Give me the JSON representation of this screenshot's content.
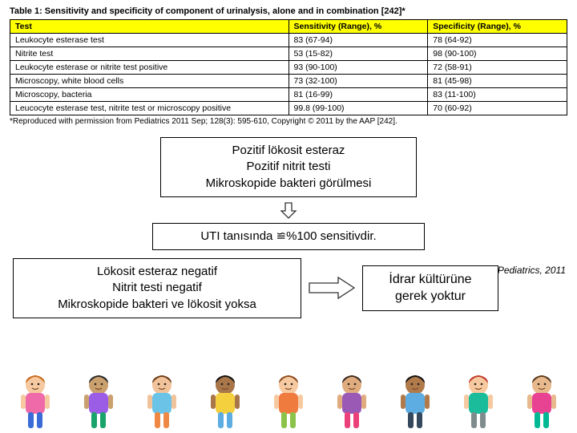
{
  "table": {
    "title": "Table 1: Sensitivity and specificity of component of urinalysis, alone and in combination [242]*",
    "columns": [
      "Test",
      "Sensitivity (Range), %",
      "Specificity (Range), %"
    ],
    "rows": [
      [
        "Leukocyte esterase test",
        "83 (67-94)",
        "78 (64-92)"
      ],
      [
        "Nitrite test",
        "53 (15-82)",
        "98 (90-100)"
      ],
      [
        "Leukocyte esterase or nitrite test positive",
        "93 (90-100)",
        "72 (58-91)"
      ],
      [
        "Microscopy, white blood cells",
        "73 (32-100)",
        "81 (45-98)"
      ],
      [
        "Microscopy, bacteria",
        "81 (16-99)",
        "83 (11-100)"
      ],
      [
        "Leucocyte esterase test, nitrite test or microscopy positive",
        "99.8 (99-100)",
        "70 (60-92)"
      ]
    ],
    "caption": "*Reproduced with permission from Pediatrics 2011 Sep; 128(3): 595-610, Copyright © 2011 by the AAP [242].",
    "header_bg": "#ffff00",
    "col_widths": [
      "50%",
      "25%",
      "25%"
    ],
    "font_size": 10.5,
    "title_font_size": 11,
    "caption_font_size": 10
  },
  "box1": {
    "line1": "Pozitif lökosit esteraz",
    "line2": "Pozitif nitrit testi",
    "line3": "Mikroskopide bakteri görülmesi"
  },
  "box2": {
    "text": "UTI tanısında ≌%100 sensitivdir."
  },
  "box3": {
    "line1": "Lökosit esteraz negatif",
    "line2": "Nitrit testi negatif",
    "line3": "Mikroskopide bakteri ve lökosit yoksa"
  },
  "box4": {
    "line1": "İdrar kültürüne",
    "line2": "gerek yoktur"
  },
  "reference": "Pediatrics, 2011",
  "colors": {
    "border": "#000000",
    "bg": "#ffffff",
    "arrow_stroke": "#333333"
  },
  "kids": [
    {
      "hair": "#c56a1a",
      "skin": "#f6c9a0",
      "dress": "#ef6aa8",
      "pants": "#3a6bd6"
    },
    {
      "hair": "#2a2a2a",
      "skin": "#caa06e",
      "dress": "#9b5de5",
      "pants": "#1aa36b"
    },
    {
      "hair": "#6a3b16",
      "skin": "#f1c39a",
      "dress": "#6bc4e8",
      "pants": "#ee8844"
    },
    {
      "hair": "#111111",
      "skin": "#a9764a",
      "dress": "#f4d03f",
      "pants": "#5dade2"
    },
    {
      "hair": "#8a4a20",
      "skin": "#f6c9a0",
      "dress": "#f07b3f",
      "pants": "#8bc34a"
    },
    {
      "hair": "#3a2a20",
      "skin": "#e0ac7e",
      "dress": "#9b59b6",
      "pants": "#ec407a"
    },
    {
      "hair": "#111111",
      "skin": "#b07a4a",
      "dress": "#5dade2",
      "pants": "#34495e"
    },
    {
      "hair": "#c0392b",
      "skin": "#f6c9a0",
      "dress": "#1abc9c",
      "pants": "#7f8c8d"
    },
    {
      "hair": "#5a3a20",
      "skin": "#e8b98c",
      "dress": "#e84393",
      "pants": "#00b894"
    }
  ]
}
